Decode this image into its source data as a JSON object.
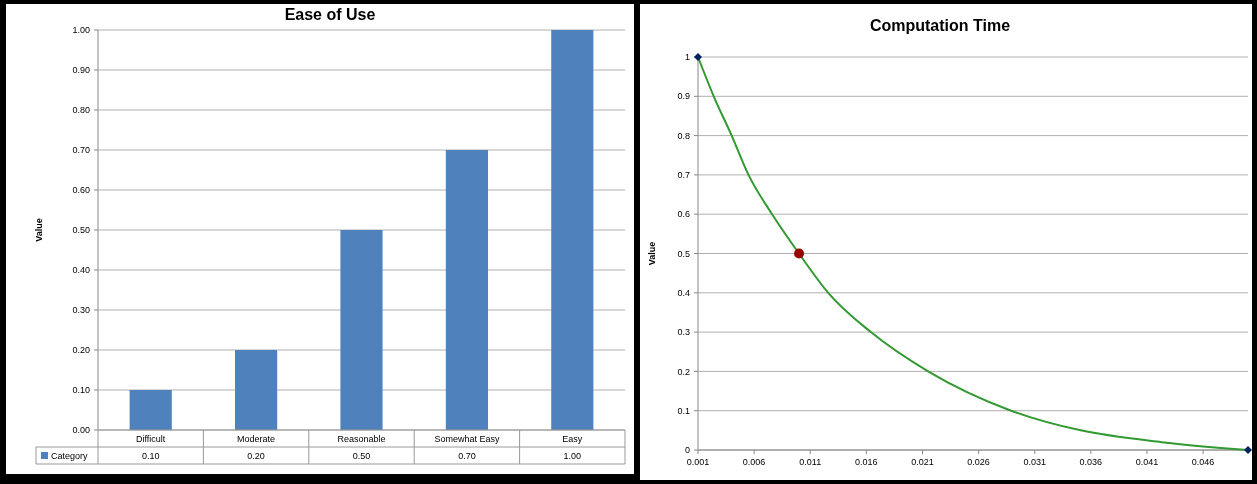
{
  "chart_data": [
    {
      "type": "bar",
      "title": "Ease of Use",
      "ylabel": "Value",
      "categories": [
        "Difficult",
        "Moderate",
        "Reasonable",
        "Somewhat Easy",
        "Easy"
      ],
      "series": [
        {
          "name": "Category",
          "color": "#4f81bd",
          "values": [
            0.1,
            0.2,
            0.5,
            0.7,
            1.0
          ],
          "value_labels": [
            "0.10",
            "0.20",
            "0.50",
            "0.70",
            "1.00"
          ]
        }
      ],
      "ylim": [
        0,
        1
      ],
      "yticks": [
        {
          "value": 0,
          "label": "0.00"
        },
        {
          "value": 0.1,
          "label": "0.10"
        },
        {
          "value": 0.2,
          "label": "0.20"
        },
        {
          "value": 0.3,
          "label": "0.30"
        },
        {
          "value": 0.4,
          "label": "0.40"
        },
        {
          "value": 0.5,
          "label": "0.50"
        },
        {
          "value": 0.6,
          "label": "0.60"
        },
        {
          "value": 0.7,
          "label": "0.70"
        },
        {
          "value": 0.8,
          "label": "0.80"
        },
        {
          "value": 0.9,
          "label": "0.90"
        },
        {
          "value": 1,
          "label": "1.00"
        }
      ],
      "grid": "y",
      "legend": "bottom"
    },
    {
      "type": "line",
      "title": "Computation Time",
      "ylabel": "Value",
      "series": [
        {
          "type": "line",
          "color": "#339933",
          "marker": "none",
          "x": [
            0.001,
            0.0024,
            0.004,
            0.0055,
            0.0076,
            0.01,
            0.0126,
            0.0164,
            0.0215,
            0.0289,
            0.0351,
            0.0423,
            0.05
          ],
          "values": [
            1,
            0.9,
            0.8,
            0.7,
            0.6,
            0.5,
            0.4,
            0.3,
            0.2,
            0.1,
            0.05,
            0.02,
            0
          ]
        },
        {
          "type": "scatter",
          "color": "#002060",
          "marker": "diamond",
          "x": [
            0.001,
            0.05
          ],
          "values": [
            1,
            0
          ]
        },
        {
          "type": "scatter",
          "color": "#990000",
          "marker": "circle",
          "x": [
            0.01
          ],
          "values": [
            0.5
          ]
        }
      ],
      "xlim": [
        0.001,
        0.05
      ],
      "xticks": [
        0.001,
        0.006,
        0.011,
        0.016,
        0.021,
        0.026,
        0.031,
        0.036,
        0.041,
        0.046
      ],
      "ylim": [
        0,
        1
      ],
      "yticks": [
        0,
        0.1,
        0.2,
        0.3,
        0.4,
        0.5,
        0.6,
        0.7,
        0.8,
        0.9,
        1
      ],
      "grid": "y"
    }
  ]
}
